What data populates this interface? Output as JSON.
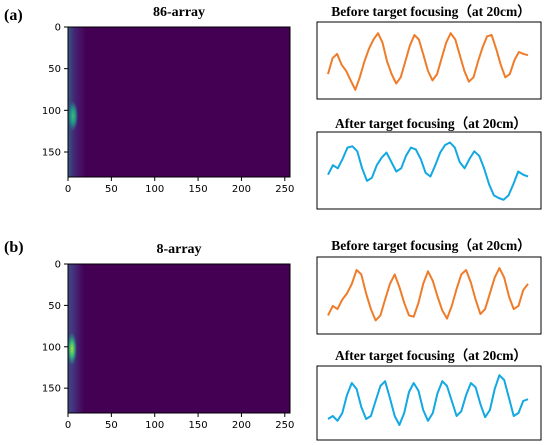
{
  "panels": [
    {
      "label": "(a)",
      "heatmap_title": "86-array",
      "before_title": "Before target focusing（at 20cm）",
      "after_title": "After target focusing（at 20cm）"
    },
    {
      "label": "(b)",
      "heatmap_title": "8-array",
      "before_title": "Before target focusing（at 20cm）",
      "after_title": "After target focusing（at 20cm）"
    }
  ],
  "colors": {
    "heatmap_bg": "#440154",
    "before_line": "#ef7c2a",
    "after_line": "#13a8e2",
    "frame": "#000000"
  },
  "chart_data": [
    {
      "type": "heatmap",
      "title": "86-array",
      "xticks": [
        0,
        50,
        100,
        150,
        200,
        250
      ],
      "yticks": [
        0,
        50,
        100,
        150
      ],
      "xlim": [
        0,
        256
      ],
      "ylim": [
        180,
        0
      ],
      "bright_band": {
        "x_range": [
          0,
          14
        ],
        "peak_y": 105,
        "peak_value": 0.75
      }
    },
    {
      "type": "line",
      "title": "Before target focusing（at 20cm）",
      "color": "#ef7c2a",
      "values": [
        0.3,
        0.55,
        0.62,
        0.45,
        0.35,
        0.2,
        0.05,
        0.25,
        0.5,
        0.7,
        0.85,
        0.95,
        0.8,
        0.5,
        0.3,
        0.15,
        0.25,
        0.5,
        0.75,
        0.92,
        0.85,
        0.6,
        0.35,
        0.2,
        0.3,
        0.55,
        0.8,
        0.95,
        0.85,
        0.6,
        0.35,
        0.18,
        0.25,
        0.5,
        0.72,
        0.9,
        0.92,
        0.7,
        0.45,
        0.25,
        0.3,
        0.52,
        0.65,
        0.62,
        0.6
      ]
    },
    {
      "type": "line",
      "title": "After target focusing（at 20cm）",
      "color": "#13a8e2",
      "values": [
        0.45,
        0.6,
        0.55,
        0.7,
        0.88,
        0.9,
        0.82,
        0.55,
        0.35,
        0.4,
        0.6,
        0.72,
        0.8,
        0.65,
        0.5,
        0.55,
        0.75,
        0.88,
        0.85,
        0.7,
        0.48,
        0.42,
        0.6,
        0.8,
        0.92,
        0.96,
        0.88,
        0.65,
        0.55,
        0.7,
        0.82,
        0.75,
        0.55,
        0.3,
        0.12,
        0.08,
        0.05,
        0.12,
        0.3,
        0.5,
        0.45,
        0.42
      ]
    },
    {
      "type": "heatmap",
      "title": "8-array",
      "xticks": [
        0,
        50,
        100,
        150,
        200,
        250
      ],
      "yticks": [
        0,
        50,
        100,
        150
      ],
      "xlim": [
        0,
        256
      ],
      "ylim": [
        180,
        0
      ],
      "bright_band": {
        "x_range": [
          0,
          14
        ],
        "peak_y": 97,
        "peak_value": 0.85
      }
    },
    {
      "type": "line",
      "title": "Before target focusing（at 20cm）",
      "color": "#ef7c2a",
      "values": [
        0.2,
        0.35,
        0.3,
        0.45,
        0.55,
        0.7,
        0.92,
        0.85,
        0.55,
        0.3,
        0.12,
        0.2,
        0.45,
        0.7,
        0.85,
        0.65,
        0.4,
        0.2,
        0.18,
        0.4,
        0.7,
        0.9,
        0.75,
        0.5,
        0.28,
        0.15,
        0.35,
        0.62,
        0.85,
        0.92,
        0.72,
        0.45,
        0.22,
        0.3,
        0.55,
        0.8,
        0.95,
        0.8,
        0.5,
        0.3,
        0.35,
        0.6,
        0.7
      ]
    },
    {
      "type": "line",
      "title": "After target focusing（at 20cm）",
      "color": "#13a8e2",
      "values": [
        0.25,
        0.3,
        0.22,
        0.35,
        0.65,
        0.85,
        0.75,
        0.45,
        0.25,
        0.3,
        0.55,
        0.8,
        0.88,
        0.6,
        0.3,
        0.15,
        0.35,
        0.7,
        0.85,
        0.72,
        0.4,
        0.22,
        0.35,
        0.68,
        0.88,
        0.8,
        0.55,
        0.3,
        0.38,
        0.65,
        0.85,
        0.78,
        0.5,
        0.28,
        0.4,
        0.75,
        0.98,
        0.9,
        0.6,
        0.3,
        0.35,
        0.55,
        0.58
      ]
    }
  ]
}
